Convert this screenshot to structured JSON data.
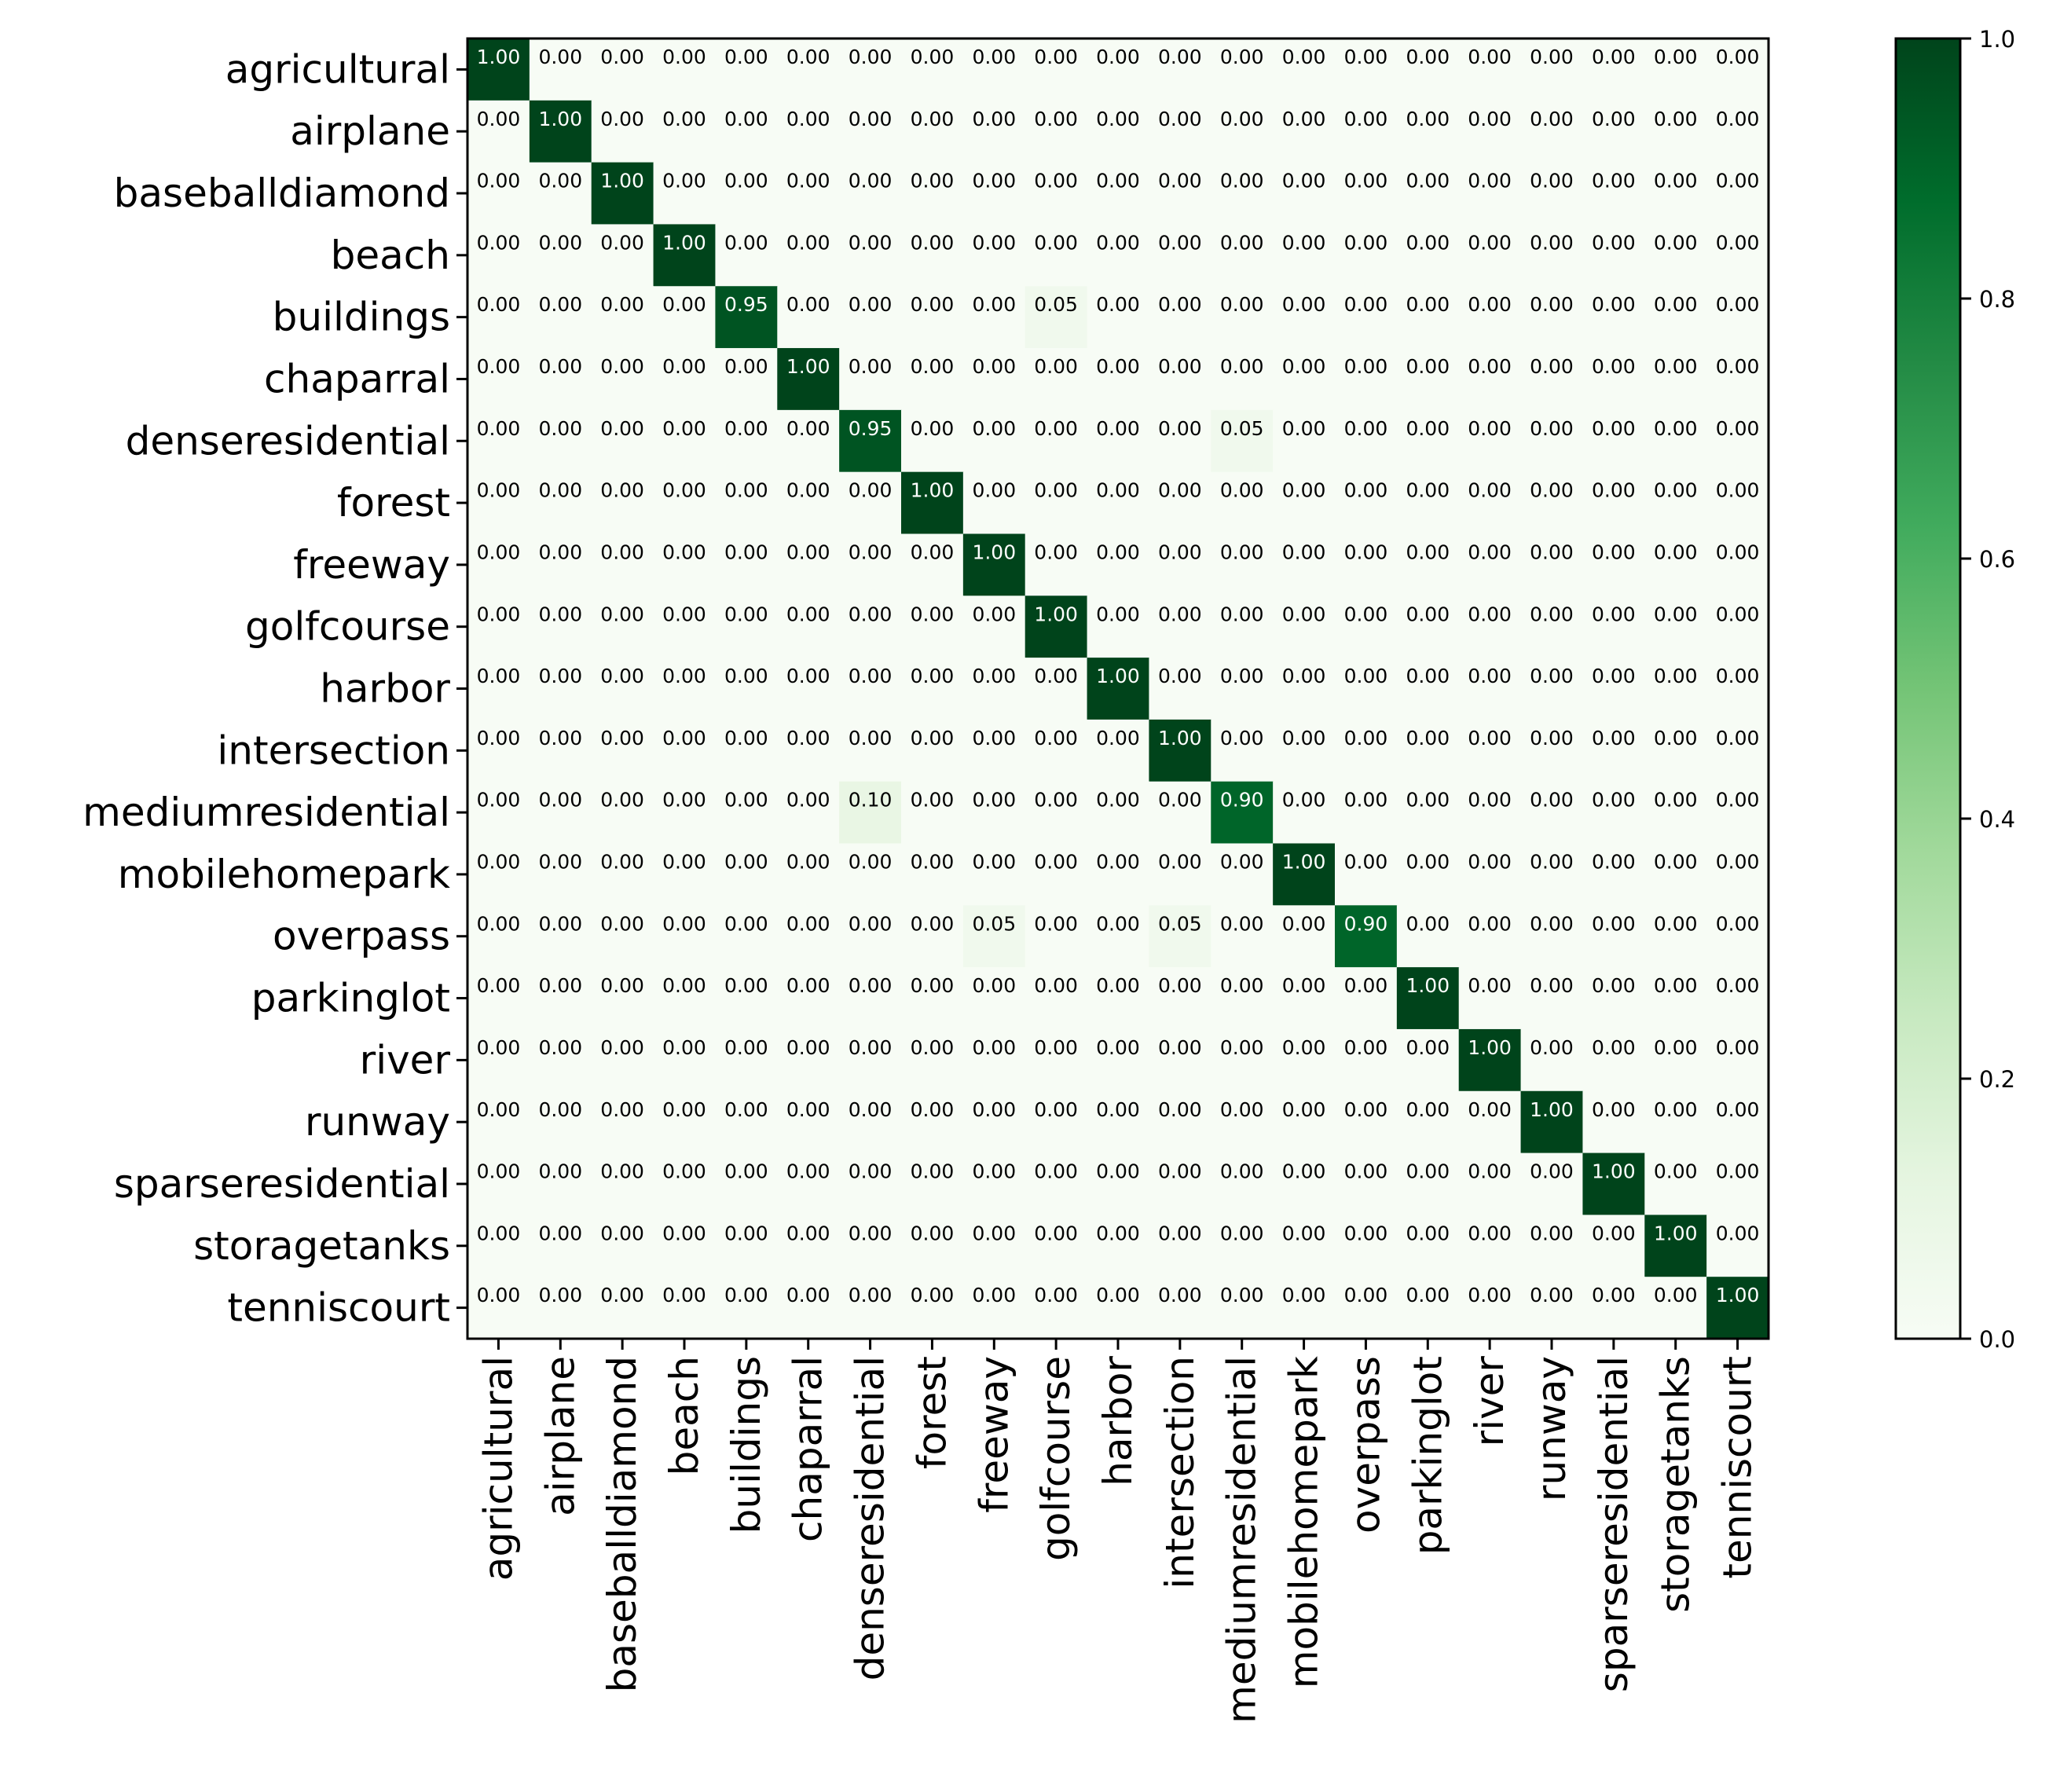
{
  "chart_data": {
    "type": "heatmap",
    "title": "",
    "xlabel": "",
    "ylabel": "",
    "rows": [
      "agricultural",
      "airplane",
      "baseballdiamond",
      "beach",
      "buildings",
      "chaparral",
      "denseresidential",
      "forest",
      "freeway",
      "golfcourse",
      "harbor",
      "intersection",
      "mediumresidential",
      "mobilehomepark",
      "overpass",
      "parkinglot",
      "river",
      "runway",
      "sparseresidential",
      "storagetanks",
      "tenniscourt"
    ],
    "columns": [
      "agricultural",
      "airplane",
      "baseballdiamond",
      "beach",
      "buildings",
      "chaparral",
      "denseresidential",
      "forest",
      "freeway",
      "golfcourse",
      "harbor",
      "intersection",
      "mediumresidential",
      "mobilehomepark",
      "overpass",
      "parkinglot",
      "river",
      "runway",
      "sparseresidential",
      "storagetanks",
      "tenniscourt"
    ],
    "value_format": "0.00",
    "off_diagonal": [
      {
        "row": 4,
        "col": 9,
        "value": 0.05
      },
      {
        "row": 6,
        "col": 12,
        "value": 0.05
      },
      {
        "row": 12,
        "col": 6,
        "value": 0.1
      },
      {
        "row": 14,
        "col": 8,
        "value": 0.05
      },
      {
        "row": 14,
        "col": 11,
        "value": 0.05
      }
    ],
    "diagonal": [
      1.0,
      1.0,
      1.0,
      1.0,
      0.95,
      1.0,
      0.95,
      1.0,
      1.0,
      1.0,
      1.0,
      1.0,
      0.9,
      1.0,
      0.9,
      1.0,
      1.0,
      1.0,
      1.0,
      1.0,
      1.0
    ],
    "colormap": "Greens",
    "colorbar": {
      "min": 0.0,
      "max": 1.0,
      "ticks": [
        "0.0",
        "0.2",
        "0.4",
        "0.6",
        "0.8",
        "1.0"
      ],
      "low_color": "#f7fcf5",
      "high_color": "#00441b"
    }
  }
}
